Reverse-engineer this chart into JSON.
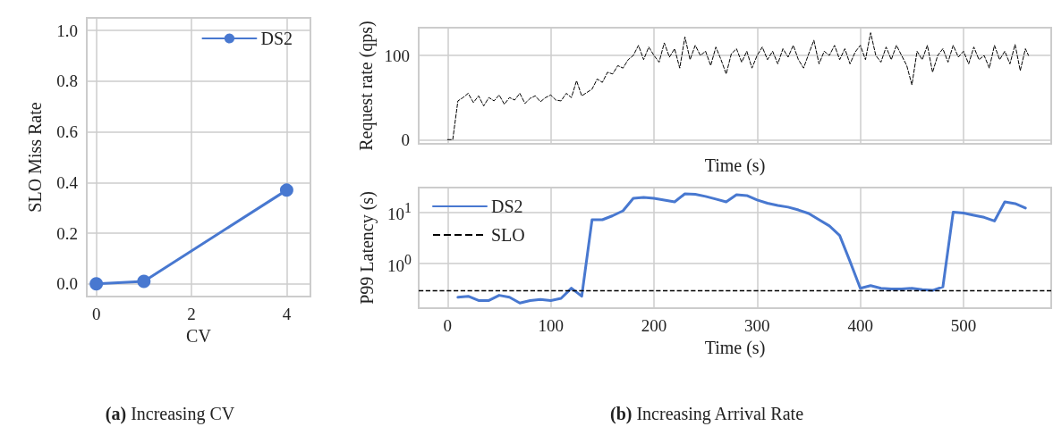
{
  "chart_data": [
    {
      "type": "line",
      "xlabel": "CV",
      "ylabel": "SLO Miss Rate",
      "x": [
        0,
        1,
        4
      ],
      "xlim": [
        -0.2,
        4.5
      ],
      "xticks": [
        0,
        2,
        4
      ],
      "ylim": [
        -0.05,
        1.05
      ],
      "yticks": [
        {
          "value": 0,
          "label": "0.0"
        },
        0.2,
        0.4,
        0.6,
        0.8,
        {
          "value": 1,
          "label": "1.0"
        }
      ],
      "grid": true,
      "legend": "top right",
      "marker": "circle",
      "line_style": "solid",
      "series": [
        {
          "name": "DS2",
          "color": "#4878d0",
          "values": [
            0,
            0.01,
            0.37
          ]
        }
      ],
      "annotations": [
        "(a) Increasing CV"
      ]
    },
    {
      "type": "line",
      "xlabel": "Time (s)",
      "ylabel": "Request rate (qps)",
      "xlim": [
        -28,
        585
      ],
      "xticks": [
        0,
        100,
        200,
        300,
        400,
        500
      ],
      "ylim": [
        -5,
        133
      ],
      "yticks": [
        0,
        100
      ],
      "grid": true,
      "legend": false,
      "tick_labels": "y",
      "marker": "none",
      "line_style": "dashed",
      "x": [
        0,
        5,
        10,
        15,
        20,
        25,
        30,
        35,
        40,
        45,
        50,
        55,
        60,
        65,
        70,
        75,
        80,
        85,
        90,
        95,
        100,
        105,
        110,
        115,
        120,
        125,
        130,
        135,
        140,
        145,
        150,
        155,
        160,
        165,
        170,
        175,
        180,
        185,
        190,
        195,
        200,
        205,
        210,
        215,
        220,
        225,
        230,
        235,
        240,
        245,
        250,
        255,
        260,
        265,
        270,
        275,
        280,
        285,
        290,
        295,
        300,
        305,
        310,
        315,
        320,
        325,
        330,
        335,
        340,
        345,
        350,
        355,
        360,
        365,
        370,
        375,
        380,
        385,
        390,
        395,
        400,
        405,
        410,
        415,
        420,
        425,
        430,
        435,
        440,
        445,
        450,
        455,
        460,
        465,
        470,
        475,
        480,
        485,
        490,
        495,
        500,
        505,
        510,
        515,
        520,
        525,
        530,
        535,
        540,
        545,
        550,
        555,
        560,
        563
      ],
      "series": [
        {
          "color": "#000000",
          "values": [
            0,
            0,
            46,
            50,
            55,
            44,
            52,
            40,
            50,
            46,
            53,
            42,
            50,
            47,
            55,
            43,
            49,
            52,
            45,
            50,
            53,
            47,
            46,
            55,
            50,
            70,
            52,
            56,
            60,
            72,
            68,
            80,
            78,
            88,
            85,
            95,
            100,
            112,
            95,
            110,
            100,
            92,
            115,
            98,
            108,
            85,
            122,
            95,
            112,
            100,
            105,
            88,
            110,
            95,
            78,
            102,
            108,
            92,
            105,
            85,
            100,
            110,
            95,
            105,
            90,
            108,
            98,
            112,
            95,
            85,
            102,
            118,
            90,
            105,
            100,
            112,
            95,
            108,
            90,
            104,
            112,
            95,
            127,
            100,
            92,
            110,
            95,
            112,
            100,
            88,
            65,
            105,
            95,
            112,
            80,
            100,
            108,
            92,
            112,
            98,
            105,
            90,
            110,
            95,
            100,
            85,
            112,
            95,
            105,
            90,
            113,
            82,
            108,
            100
          ]
        }
      ],
      "annotations": [
        "(b) Increasing Arrival Rate"
      ]
    },
    {
      "type": "line",
      "xlabel": "Time (s)",
      "ylabel": "P99 Latency (s)",
      "xlim": [
        -28,
        585
      ],
      "xticks": [
        0,
        100,
        200,
        300,
        400,
        500
      ],
      "ylim": [
        0.135,
        30
      ],
      "yticks": [
        {
          "value": 1,
          "label": "10$^{0}$"
        },
        {
          "value": 10,
          "label": "10$^{1}$"
        }
      ],
      "log": "y",
      "grid": true,
      "legend": "top left",
      "marker": "none",
      "line_style": "solid",
      "x": [
        10,
        20,
        30,
        40,
        50,
        60,
        70,
        80,
        90,
        100,
        110,
        120,
        130,
        140,
        150,
        160,
        170,
        180,
        190,
        200,
        210,
        220,
        230,
        240,
        250,
        260,
        270,
        280,
        290,
        300,
        310,
        320,
        330,
        340,
        350,
        360,
        370,
        380,
        390,
        400,
        410,
        420,
        430,
        440,
        450,
        460,
        470,
        480,
        490,
        500,
        510,
        520,
        530,
        540,
        550,
        560
      ],
      "series": [
        {
          "name": "DS2",
          "color": "#4878d0",
          "values": [
            0.22,
            0.23,
            0.19,
            0.19,
            0.24,
            0.22,
            0.17,
            0.19,
            0.2,
            0.19,
            0.21,
            0.33,
            0.23,
            7.1,
            7.1,
            8.5,
            10.6,
            18.6,
            19.4,
            18.6,
            17.2,
            15.8,
            22.7,
            22.2,
            20.2,
            17.9,
            15.8,
            21.8,
            21,
            17.2,
            14.9,
            13.5,
            12.5,
            11,
            9.4,
            7.1,
            5.4,
            3.5,
            1.1,
            0.33,
            0.37,
            0.33,
            0.32,
            0.32,
            0.33,
            0.31,
            0.3,
            0.35,
            10,
            9.6,
            8.7,
            7.9,
            6.7,
            15.8,
            14.6,
            12
          ]
        }
      ],
      "ref_lines": [
        {
          "axis": "y",
          "value": 0.3,
          "label": "SLO",
          "color": "#000000",
          "line_style": "dashed"
        }
      ]
    }
  ]
}
